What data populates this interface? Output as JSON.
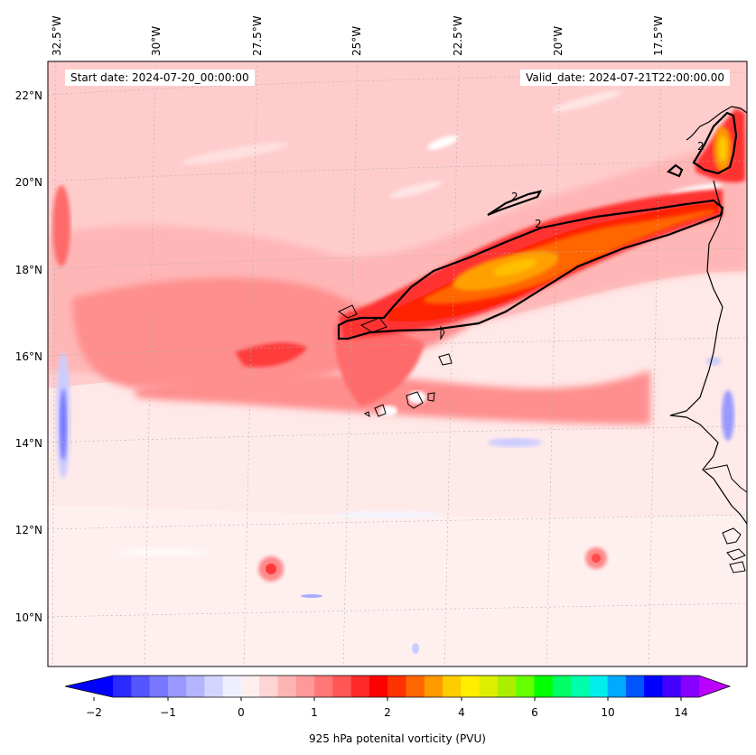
{
  "map": {
    "start_date": "Start date: 2024-07-20_00:00:00",
    "valid_date": "Valid_date: 2024-07-21T22:00:00.00",
    "lon_labels": [
      "32.5°W",
      "30°W",
      "27.5°W",
      "25°W",
      "22.5°W",
      "20°W",
      "17.5°W"
    ],
    "lat_labels": [
      "22°N",
      "20°N",
      "18°N",
      "16°N",
      "14°N",
      "12°N",
      "10°N"
    ],
    "contour_label": "2"
  },
  "colorbar": {
    "label": "925 hPa potenital vorticity (PVU)",
    "tick_labels": [
      "−2",
      "−1",
      "0",
      "1",
      "2",
      "4",
      "6",
      "10",
      "14"
    ],
    "colors": [
      "#0000ff",
      "#2a2aff",
      "#5555ff",
      "#7777ff",
      "#9999ff",
      "#b4b4ff",
      "#d4d4ff",
      "#eeeeff",
      "#ffeeee",
      "#ffd4d4",
      "#ffb4b4",
      "#ff9999",
      "#ff7777",
      "#ff5555",
      "#ff2a2a",
      "#ff0000",
      "#ff3300",
      "#ff6600",
      "#ff9900",
      "#ffcc00",
      "#ffee00",
      "#ddee00",
      "#aaee00",
      "#66ff00",
      "#00ff00",
      "#00ff66",
      "#00ffaa",
      "#00eeee",
      "#00aaff",
      "#0055ff",
      "#0000ff",
      "#4400ff",
      "#8800ff",
      "#bb00ff"
    ]
  }
}
